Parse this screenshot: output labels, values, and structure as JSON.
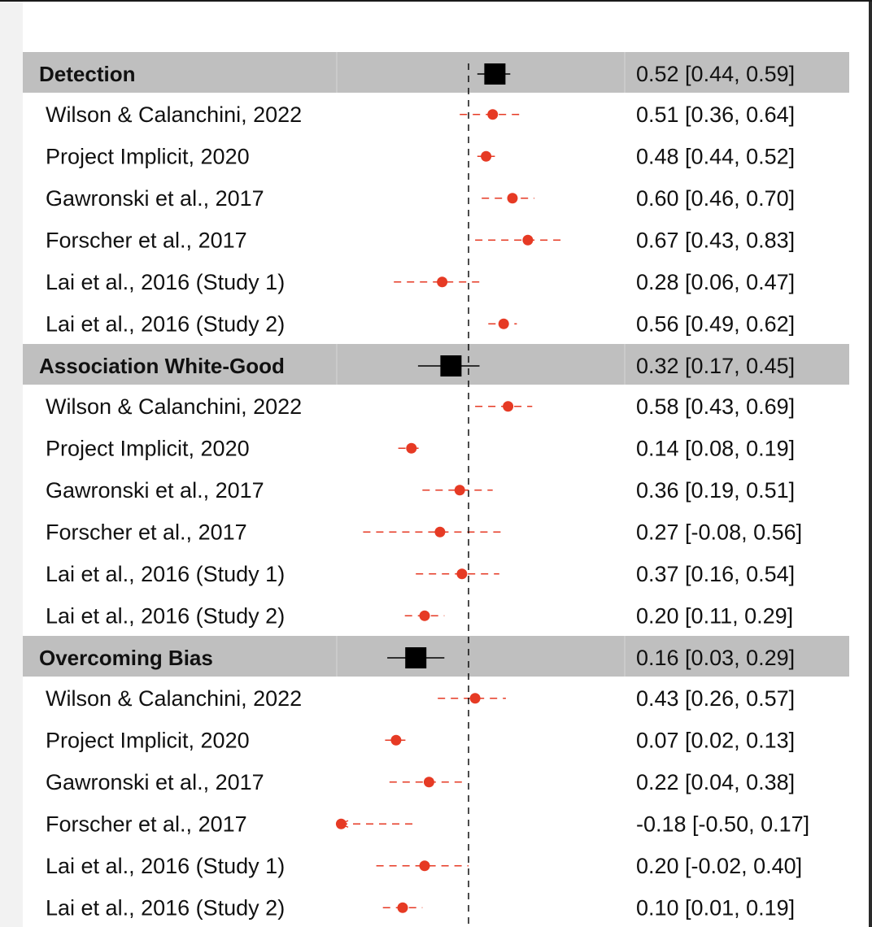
{
  "chart_data": {
    "type": "forest",
    "reference_line": 0.4,
    "xlim": [
      -0.2,
      0.95
    ],
    "colors": {
      "group_background": "#bfbfbf",
      "pooled_marker": "#000000",
      "study_marker": "#e63a24",
      "reference_line": "#000000"
    },
    "groups": [
      {
        "name": "Detection",
        "estimate": 0.52,
        "lower": 0.44,
        "upper": 0.59,
        "label": "0.52 [0.44, 0.59]",
        "studies": [
          {
            "name": "Wilson & Calanchini, 2022",
            "estimate": 0.51,
            "lower": 0.36,
            "upper": 0.64,
            "label": "0.51 [0.36, 0.64]"
          },
          {
            "name": "Project Implicit, 2020",
            "estimate": 0.48,
            "lower": 0.44,
            "upper": 0.52,
            "label": "0.48 [0.44, 0.52]"
          },
          {
            "name": "Gawronski et al., 2017",
            "estimate": 0.6,
            "lower": 0.46,
            "upper": 0.7,
            "label": "0.60 [0.46, 0.70]"
          },
          {
            "name": "Forscher et al., 2017",
            "estimate": 0.67,
            "lower": 0.43,
            "upper": 0.83,
            "label": "0.67 [0.43, 0.83]"
          },
          {
            "name": "Lai et al., 2016 (Study 1)",
            "estimate": 0.28,
            "lower": 0.06,
            "upper": 0.47,
            "label": "0.28 [0.06, 0.47]"
          },
          {
            "name": "Lai et al., 2016 (Study 2)",
            "estimate": 0.56,
            "lower": 0.49,
            "upper": 0.62,
            "label": "0.56 [0.49, 0.62]"
          }
        ]
      },
      {
        "name": "Association White-Good",
        "estimate": 0.32,
        "lower": 0.17,
        "upper": 0.45,
        "label": "0.32 [0.17, 0.45]",
        "studies": [
          {
            "name": "Wilson & Calanchini, 2022",
            "estimate": 0.58,
            "lower": 0.43,
            "upper": 0.69,
            "label": "0.58 [0.43, 0.69]"
          },
          {
            "name": "Project Implicit, 2020",
            "estimate": 0.14,
            "lower": 0.08,
            "upper": 0.19,
            "label": "0.14 [0.08, 0.19]"
          },
          {
            "name": "Gawronski et al., 2017",
            "estimate": 0.36,
            "lower": 0.19,
            "upper": 0.51,
            "label": "0.36 [0.19, 0.51]"
          },
          {
            "name": "Forscher et al., 2017",
            "estimate": 0.27,
            "lower": -0.08,
            "upper": 0.56,
            "label": "0.27 [-0.08, 0.56]"
          },
          {
            "name": "Lai et al., 2016 (Study 1)",
            "estimate": 0.37,
            "lower": 0.16,
            "upper": 0.54,
            "label": "0.37 [0.16, 0.54]"
          },
          {
            "name": "Lai et al., 2016 (Study 2)",
            "estimate": 0.2,
            "lower": 0.11,
            "upper": 0.29,
            "label": "0.20 [0.11, 0.29]"
          }
        ]
      },
      {
        "name": "Overcoming Bias",
        "estimate": 0.16,
        "lower": 0.03,
        "upper": 0.29,
        "label": "0.16 [0.03, 0.29]",
        "studies": [
          {
            "name": "Wilson & Calanchini, 2022",
            "estimate": 0.43,
            "lower": 0.26,
            "upper": 0.57,
            "label": "0.43 [0.26, 0.57]"
          },
          {
            "name": "Project Implicit, 2020",
            "estimate": 0.07,
            "lower": 0.02,
            "upper": 0.13,
            "label": "0.07 [0.02, 0.13]"
          },
          {
            "name": "Gawronski et al., 2017",
            "estimate": 0.22,
            "lower": 0.04,
            "upper": 0.38,
            "label": "0.22 [0.04, 0.38]"
          },
          {
            "name": "Forscher et al., 2017",
            "estimate": -0.18,
            "lower": -0.5,
            "upper": 0.17,
            "label": "-0.18 [-0.50, 0.17]"
          },
          {
            "name": "Lai et al., 2016 (Study 1)",
            "estimate": 0.2,
            "lower": -0.02,
            "upper": 0.4,
            "label": "0.20 [-0.02, 0.40]"
          },
          {
            "name": "Lai et al., 2016 (Study 2)",
            "estimate": 0.1,
            "lower": 0.01,
            "upper": 0.19,
            "label": "0.10 [0.01, 0.19]"
          }
        ]
      }
    ]
  }
}
